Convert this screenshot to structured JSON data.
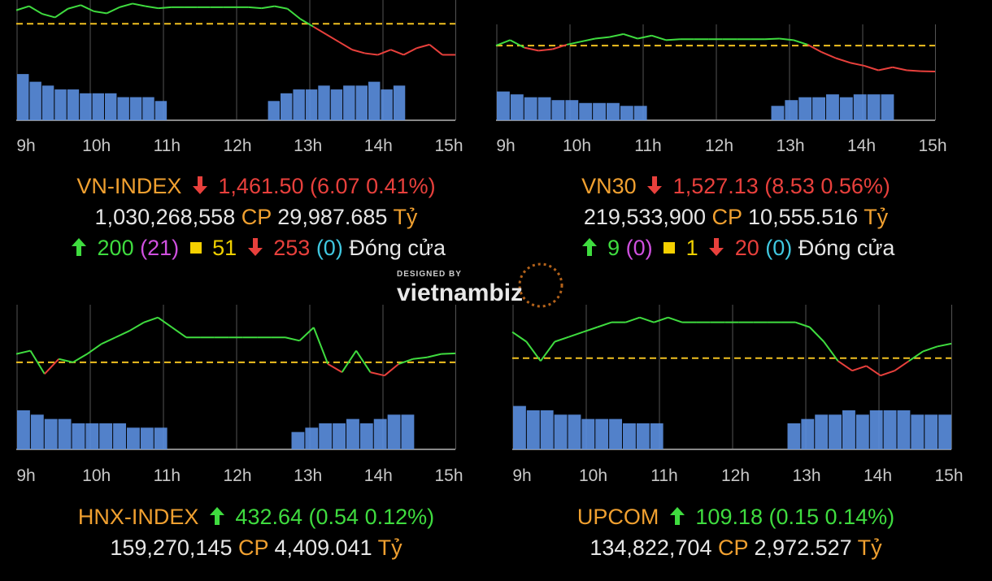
{
  "chart_data": [
    {
      "type": "line",
      "title": "VN-INDEX",
      "x_ticks": [
        "9h",
        "10h",
        "11h",
        "12h",
        "13h",
        "14h",
        "15h"
      ],
      "reference": 1467.57,
      "last": 1461.5,
      "series": [
        {
          "values": [
            1470.2,
            1471.0,
            1469.5,
            1468.8,
            1470.5,
            1471.2,
            1470.0,
            1469.6,
            1470.8,
            1471.5,
            1471.0,
            1470.6,
            1470.8,
            1470.8,
            1470.8,
            1470.8,
            1470.8,
            1470.8,
            1470.8,
            1470.6,
            1471.0,
            1470.5,
            1468.5,
            1467.0,
            1465.5,
            1464.0,
            1462.5,
            1461.8,
            1461.5,
            1462.5,
            1461.5,
            1462.8,
            1463.5,
            1461.5,
            1461.5
          ]
        }
      ],
      "volume": [
        12,
        10,
        9,
        8,
        8,
        7,
        7,
        7,
        6,
        6,
        6,
        5,
        0,
        0,
        0,
        0,
        0,
        0,
        0,
        0,
        5,
        7,
        8,
        8,
        9,
        8,
        9,
        9,
        10,
        8,
        9,
        0,
        0,
        0,
        0
      ]
    },
    {
      "type": "line",
      "title": "VN30",
      "x_ticks": [
        "9h",
        "10h",
        "11h",
        "12h",
        "13h",
        "14h",
        "15h"
      ],
      "reference": 1535.66,
      "last": 1527.13,
      "series": [
        {
          "values": [
            1535.7,
            1537.5,
            1535.0,
            1534.0,
            1534.5,
            1536.0,
            1537.0,
            1538.0,
            1538.5,
            1539.5,
            1538.0,
            1539.0,
            1537.5,
            1537.8,
            1537.8,
            1537.8,
            1537.8,
            1537.8,
            1537.8,
            1537.8,
            1538.0,
            1537.5,
            1536.0,
            1533.5,
            1531.5,
            1530.0,
            1529.0,
            1527.5,
            1528.5,
            1527.5,
            1527.2,
            1527.1
          ]
        }
      ],
      "volume": [
        10,
        9,
        8,
        8,
        7,
        7,
        6,
        6,
        6,
        5,
        5,
        0,
        0,
        0,
        0,
        0,
        0,
        0,
        0,
        0,
        5,
        7,
        8,
        8,
        9,
        8,
        9,
        9,
        9,
        0,
        0,
        0
      ]
    },
    {
      "type": "line",
      "title": "HNX-INDEX",
      "x_ticks": [
        "9h",
        "10h",
        "11h",
        "12h",
        "13h",
        "14h",
        "15h"
      ],
      "reference": 432.1,
      "last": 432.64,
      "series": [
        {
          "values": [
            432.6,
            432.8,
            431.4,
            432.3,
            432.1,
            432.6,
            433.2,
            433.6,
            434.0,
            434.5,
            434.8,
            434.2,
            433.6,
            433.6,
            433.6,
            433.6,
            433.6,
            433.6,
            433.6,
            433.6,
            433.4,
            434.2,
            432.0,
            431.5,
            432.8,
            431.5,
            431.3,
            432.0,
            432.3,
            432.4,
            432.6,
            432.64
          ]
        }
      ],
      "volume": [
        9,
        8,
        7,
        7,
        6,
        6,
        6,
        6,
        5,
        5,
        5,
        0,
        0,
        0,
        0,
        0,
        0,
        0,
        0,
        0,
        4,
        5,
        6,
        6,
        7,
        6,
        7,
        8,
        8,
        0,
        0,
        0
      ]
    },
    {
      "type": "line",
      "title": "UPCOM",
      "x_ticks": [
        "9h",
        "10h",
        "11h",
        "12h",
        "13h",
        "14h",
        "15h"
      ],
      "reference": 109.03,
      "last": 109.18,
      "series": [
        {
          "values": [
            109.3,
            109.2,
            109.0,
            109.2,
            109.25,
            109.3,
            109.35,
            109.4,
            109.4,
            109.45,
            109.4,
            109.45,
            109.4,
            109.4,
            109.4,
            109.4,
            109.4,
            109.4,
            109.4,
            109.4,
            109.4,
            109.35,
            109.2,
            109.0,
            108.9,
            108.95,
            108.85,
            108.9,
            109.0,
            109.1,
            109.15,
            109.18
          ]
        }
      ],
      "volume": [
        10,
        9,
        9,
        8,
        8,
        7,
        7,
        7,
        6,
        6,
        6,
        0,
        0,
        0,
        0,
        0,
        0,
        0,
        0,
        0,
        6,
        7,
        8,
        8,
        9,
        8,
        9,
        9,
        9,
        8,
        8,
        8
      ]
    }
  ],
  "panels": [
    {
      "name": "VN-INDEX",
      "direction": "down",
      "value": "1,461.50",
      "change": "(6.07 0.41%)",
      "volume": "1,030,268,558",
      "cp_label": "CP",
      "amount": "29,987.685",
      "unit": "Tỷ",
      "adv": "200",
      "adv_ceiling": "(21)",
      "unch": "51",
      "dec": "253",
      "dec_floor": "(0)",
      "status": "Đóng cửa"
    },
    {
      "name": "VN30",
      "direction": "down",
      "value": "1,527.13",
      "change": "(8.53 0.56%)",
      "volume": "219,533,900",
      "cp_label": "CP",
      "amount": "10,555.516",
      "unit": "Tỷ",
      "adv": "9",
      "adv_ceiling": "(0)",
      "unch": "1",
      "dec": "20",
      "dec_floor": "(0)",
      "status": "Đóng cửa"
    },
    {
      "name": "HNX-INDEX",
      "direction": "up",
      "value": "432.64",
      "change": "(0.54 0.12%)",
      "volume": "159,270,145",
      "cp_label": "CP",
      "amount": "4,409.041",
      "unit": "Tỷ"
    },
    {
      "name": "UPCOM",
      "direction": "up",
      "value": "109.18",
      "change": "(0.15 0.14%)",
      "volume": "134,822,704",
      "cp_label": "CP",
      "amount": "2,972.527",
      "unit": "Tỷ"
    }
  ],
  "watermark": {
    "line1": "DESIGNED BY",
    "line2": "vietnambiz"
  },
  "colors": {
    "up": "#3fdc3f",
    "down": "#e8403c",
    "ref": "#f0c020",
    "volume": "#5b8fe0",
    "grid": "#555555"
  }
}
